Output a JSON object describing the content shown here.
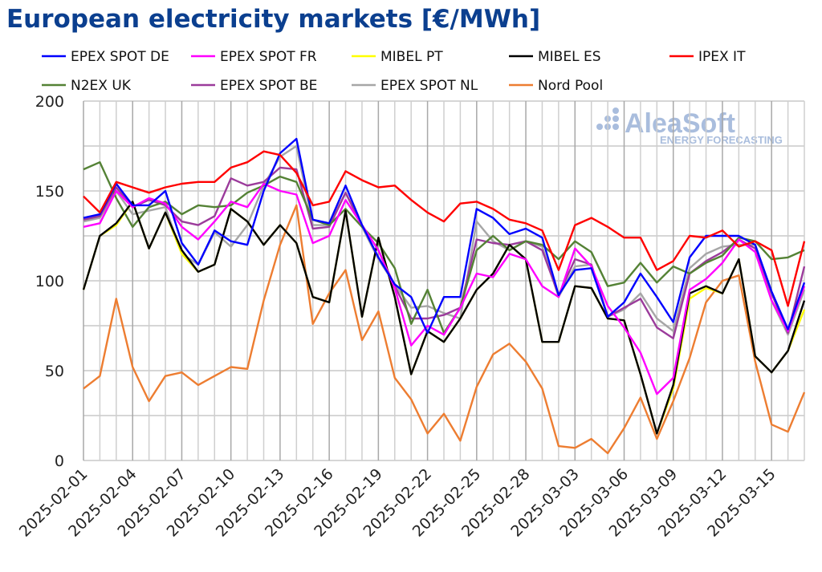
{
  "title": "European electricity markets [€/MWh]",
  "logo": {
    "text": "AleaSoft",
    "subtext": "ENERGY FORECASTING",
    "color": "#a9bddd"
  },
  "chart_data": {
    "type": "line",
    "title": "European electricity markets [€/MWh]",
    "xlabel": "",
    "ylabel": "",
    "ylim": [
      0,
      200
    ],
    "yticks": [
      0,
      50,
      100,
      150,
      200
    ],
    "grid": true,
    "legend_position": "top",
    "x": [
      "2025-02-01",
      "2025-02-02",
      "2025-02-03",
      "2025-02-04",
      "2025-02-05",
      "2025-02-06",
      "2025-02-07",
      "2025-02-08",
      "2025-02-09",
      "2025-02-10",
      "2025-02-11",
      "2025-02-12",
      "2025-02-13",
      "2025-02-14",
      "2025-02-15",
      "2025-02-16",
      "2025-02-17",
      "2025-02-18",
      "2025-02-19",
      "2025-02-20",
      "2025-02-21",
      "2025-02-22",
      "2025-02-23",
      "2025-02-24",
      "2025-02-25",
      "2025-02-26",
      "2025-02-27",
      "2025-02-28",
      "2025-03-01",
      "2025-03-02",
      "2025-03-03",
      "2025-03-04",
      "2025-03-05",
      "2025-03-06",
      "2025-03-07",
      "2025-03-08",
      "2025-03-09",
      "2025-03-10",
      "2025-03-11",
      "2025-03-12",
      "2025-03-13",
      "2025-03-14",
      "2025-03-15",
      "2025-03-16",
      "2025-03-17"
    ],
    "xtick_labels": [
      "2025-02-01",
      "2025-02-04",
      "2025-02-07",
      "2025-02-10",
      "2025-02-13",
      "2025-02-16",
      "2025-02-19",
      "2025-02-22",
      "2025-02-25",
      "2025-02-28",
      "2025-03-03",
      "2025-03-06",
      "2025-03-09",
      "2025-03-12",
      "2025-03-15"
    ],
    "series": [
      {
        "name": "Nord Pool",
        "color": "#ed7d31",
        "values": [
          40,
          47,
          90,
          52,
          33,
          47,
          49,
          42,
          47,
          52,
          51,
          89,
          120,
          142,
          76,
          93,
          106,
          67,
          83,
          46,
          34,
          15,
          26,
          11,
          41,
          59,
          65,
          55,
          40,
          8,
          7,
          12,
          4,
          18,
          35,
          12,
          33,
          57,
          88,
          100,
          103,
          55,
          20,
          16,
          38
        ]
      },
      {
        "name": "EPEX SPOT NL",
        "color": "#a6a6a6",
        "values": [
          133,
          135,
          150,
          137,
          139,
          141,
          115,
          109,
          127,
          119,
          131,
          153,
          169,
          175,
          131,
          131,
          149,
          130,
          112,
          98,
          85,
          86,
          82,
          79,
          133,
          122,
          117,
          122,
          119,
          91,
          108,
          109,
          80,
          84,
          93,
          79,
          72,
          107,
          115,
          119,
          120,
          120,
          89,
          70,
          95
        ]
      },
      {
        "name": "EPEX SPOT BE",
        "color": "#9b3b9b",
        "values": [
          134,
          136,
          152,
          141,
          145,
          142,
          133,
          131,
          136,
          157,
          153,
          155,
          163,
          162,
          129,
          130,
          149,
          131,
          117,
          97,
          79,
          79,
          81,
          85,
          123,
          121,
          120,
          122,
          117,
          92,
          112,
          109,
          80,
          85,
          90,
          74,
          68,
          104,
          111,
          116,
          123,
          118,
          93,
          71,
          108
        ]
      },
      {
        "name": "N2EX UK",
        "color": "#548235",
        "values": [
          162,
          166,
          146,
          130,
          141,
          144,
          137,
          142,
          141,
          142,
          149,
          153,
          158,
          155,
          134,
          131,
          140,
          130,
          121,
          107,
          76,
          95,
          71,
          85,
          117,
          125,
          117,
          122,
          120,
          112,
          122,
          116,
          97,
          99,
          110,
          99,
          108,
          104,
          110,
          114,
          124,
          122,
          112,
          113,
          117
        ]
      },
      {
        "name": "MIBEL PT",
        "color": "#ffff00",
        "values": [
          95,
          125,
          131,
          144,
          118,
          138,
          115,
          105,
          109,
          140,
          133,
          120,
          131,
          121,
          91,
          88,
          139,
          80,
          124,
          91,
          48,
          72,
          66,
          79,
          95,
          104,
          120,
          112,
          66,
          66,
          97,
          96,
          79,
          78,
          48,
          15,
          40,
          90,
          96,
          93,
          112,
          58,
          49,
          61,
          84
        ]
      },
      {
        "name": "MIBEL ES",
        "color": "#000000",
        "values": [
          95,
          125,
          132,
          144,
          118,
          138,
          117,
          105,
          109,
          140,
          133,
          120,
          131,
          121,
          91,
          88,
          139,
          80,
          124,
          91,
          48,
          72,
          66,
          79,
          95,
          104,
          120,
          112,
          66,
          66,
          97,
          96,
          79,
          78,
          48,
          15,
          42,
          93,
          97,
          93,
          112,
          58,
          49,
          61,
          89
        ]
      },
      {
        "name": "EPEX SPOT FR",
        "color": "#ff00ff",
        "values": [
          130,
          132,
          150,
          141,
          146,
          143,
          130,
          123,
          133,
          144,
          141,
          154,
          150,
          148,
          121,
          125,
          145,
          131,
          117,
          96,
          64,
          75,
          70,
          85,
          104,
          102,
          115,
          112,
          97,
          91,
          118,
          108,
          86,
          74,
          60,
          37,
          46,
          95,
          101,
          110,
          123,
          116,
          89,
          72,
          97
        ]
      },
      {
        "name": "EPEX SPOT DE",
        "color": "#0000ff",
        "values": [
          135,
          137,
          154,
          142,
          142,
          150,
          121,
          109,
          128,
          122,
          120,
          150,
          171,
          179,
          134,
          132,
          153,
          131,
          113,
          98,
          91,
          71,
          91,
          91,
          140,
          135,
          126,
          129,
          124,
          92,
          106,
          107,
          80,
          88,
          104,
          91,
          77,
          113,
          125,
          125,
          125,
          120,
          94,
          73,
          99
        ]
      },
      {
        "name": "IPEX IT",
        "color": "#ff0000",
        "values": [
          147,
          138,
          155,
          152,
          149,
          152,
          154,
          155,
          155,
          163,
          166,
          172,
          170,
          160,
          142,
          144,
          161,
          156,
          152,
          153,
          145,
          138,
          133,
          143,
          144,
          140,
          134,
          132,
          128,
          106,
          131,
          135,
          130,
          124,
          124,
          106,
          111,
          125,
          124,
          128,
          119,
          122,
          117,
          86,
          122
        ]
      }
    ],
    "legend_order": [
      "EPEX SPOT DE",
      "EPEX SPOT FR",
      "MIBEL PT",
      "MIBEL ES",
      "IPEX IT",
      "N2EX UK",
      "EPEX SPOT BE",
      "EPEX SPOT NL",
      "Nord Pool"
    ]
  }
}
